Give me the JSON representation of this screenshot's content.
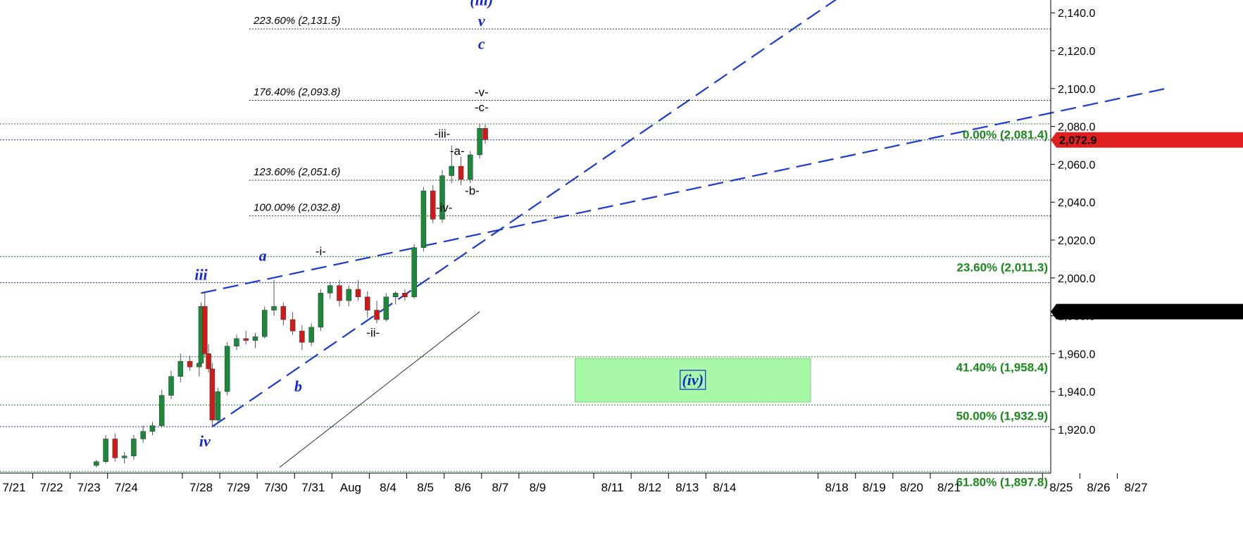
{
  "colors": {
    "up": "#1a8a3a",
    "down": "#d01a1a",
    "wave_blue": "#1428d0",
    "retr_green": "#1a8a1a",
    "last_price_bg": "#e02020",
    "value_badge_bg": "#000000",
    "zone_fill": "#a6f7a6"
  },
  "chart_data": {
    "type": "candlestick",
    "ylim": [
      1900,
      2150
    ],
    "y_ticks": [
      {
        "value": 1920,
        "label": "1,920.0"
      },
      {
        "value": 1940,
        "label": "1,940.0"
      },
      {
        "value": 1960,
        "label": "1,960.0"
      },
      {
        "value": 1980,
        "label": "1,980.0"
      },
      {
        "value": 2000,
        "label": "2,000.0"
      },
      {
        "value": 2020,
        "label": "2,020.0"
      },
      {
        "value": 2040,
        "label": "2,040.0"
      },
      {
        "value": 2060,
        "label": "2,060.0"
      },
      {
        "value": 2080,
        "label": "2,080.0"
      },
      {
        "value": 2100,
        "label": "2,100.0"
      },
      {
        "value": 2120,
        "label": "2,120.0"
      },
      {
        "value": 2140,
        "label": "2,140.0"
      }
    ],
    "x_ticks": [
      "7/21",
      "7/22",
      "7/23",
      "7/24",
      "7/28",
      "7/29",
      "7/30",
      "7/31",
      "Aug",
      "8/4",
      "8/5",
      "8/6",
      "8/7",
      "8/9",
      "8/11",
      "8/12",
      "8/13",
      "8/14",
      "8/18",
      "8/19",
      "8/20",
      "8/21",
      "8/25",
      "8/26",
      "8/27"
    ],
    "x_tick_slots": [
      0,
      1,
      2,
      3,
      5,
      6,
      7,
      8,
      9,
      10,
      11,
      12,
      13,
      14,
      16,
      17,
      18,
      19,
      22,
      23,
      24,
      25,
      28,
      29,
      30
    ],
    "last_price": {
      "value": 2072.9,
      "label": "2,072.9"
    },
    "indicator_value": {
      "value": 1982.2,
      "label": "1,982.2"
    },
    "fib_extensions": [
      {
        "value": 2131.5,
        "label": "223.60% (2,131.5)"
      },
      {
        "value": 2093.8,
        "label": "176.40% (2,093.8)"
      },
      {
        "value": 2051.6,
        "label": "123.60% (2,051.6)"
      },
      {
        "value": 2032.8,
        "label": "100.00% (2,032.8)"
      }
    ],
    "fib_retracements": [
      {
        "value": 2081.4,
        "label": "0.00% (2,081.4)"
      },
      {
        "value": 2011.3,
        "label": "23.60% (2,011.3)"
      },
      {
        "value": 1958.4,
        "label": "41.40% (1,958.4)"
      },
      {
        "value": 1932.9,
        "label": "50.00% (1,932.9)"
      },
      {
        "value": 1897.8,
        "label": "61.80% (1,897.8)"
      }
    ],
    "blue_dotted_levels": [
      2072.9,
      1997.5,
      1921.5
    ],
    "target_zone": {
      "label": "(iv)",
      "y_top": 1957.5,
      "y_bottom": 1934.5,
      "x_start_slot": 15.0,
      "x_end_slot": 21.3
    },
    "wave_labels_blue": [
      {
        "text": "(iii)",
        "x_slot": 12.5,
        "y": 2144
      },
      {
        "text": "v",
        "x_slot": 12.5,
        "y": 2133
      },
      {
        "text": "c",
        "x_slot": 12.5,
        "y": 2121
      },
      {
        "text": "iii",
        "x_slot": 5.0,
        "y": 1999
      },
      {
        "text": "a",
        "x_slot": 6.65,
        "y": 2009
      },
      {
        "text": "b",
        "x_slot": 7.6,
        "y": 1940
      },
      {
        "text": "iv",
        "x_slot": 5.1,
        "y": 1911
      }
    ],
    "wave_labels_black": [
      {
        "text": "-v-",
        "x_slot": 12.5,
        "y": 2096
      },
      {
        "text": "-c-",
        "x_slot": 12.5,
        "y": 2088
      },
      {
        "text": "-iii-",
        "x_slot": 11.45,
        "y": 2074
      },
      {
        "text": "-a-",
        "x_slot": 11.85,
        "y": 2065
      },
      {
        "text": "-b-",
        "x_slot": 12.25,
        "y": 2044
      },
      {
        "text": "-iv-",
        "x_slot": 11.5,
        "y": 2035
      },
      {
        "text": "-i-",
        "x_slot": 8.2,
        "y": 2012
      },
      {
        "text": "-ii-",
        "x_slot": 9.6,
        "y": 1969
      }
    ],
    "trendlines": [
      {
        "style": "dashed",
        "color": "blue",
        "from": [
          5.3,
          1921.5
        ],
        "to": [
          22.2,
          2150
        ]
      },
      {
        "style": "dashed",
        "color": "blue",
        "from": [
          5.0,
          1992
        ],
        "to": [
          30.8,
          2100
        ]
      },
      {
        "style": "solid",
        "color": "black",
        "from": [
          7.1,
          1900
        ],
        "to": [
          12.45,
          1982.2
        ]
      }
    ],
    "candles": [
      [
        2.2,
        1901,
        1904,
        1900,
        1903
      ],
      [
        2.45,
        1903,
        1917,
        1902,
        1915
      ],
      [
        2.7,
        1915,
        1918,
        1903,
        1905
      ],
      [
        2.95,
        1905,
        1908,
        1902,
        1906
      ],
      [
        3.2,
        1906,
        1917,
        1904,
        1915
      ],
      [
        3.45,
        1915,
        1922,
        1913,
        1919
      ],
      [
        3.7,
        1919,
        1924,
        1917,
        1922
      ],
      [
        3.95,
        1922,
        1941,
        1921,
        1938
      ],
      [
        4.2,
        1938,
        1951,
        1936,
        1948
      ],
      [
        4.45,
        1948,
        1960,
        1945,
        1956
      ],
      [
        4.7,
        1956,
        1959,
        1951,
        1953
      ],
      [
        4.95,
        1953,
        1958,
        1948,
        1955
      ],
      [
        5.0,
        1955,
        1987,
        1953,
        1985
      ],
      [
        5.1,
        1985,
        1993,
        1958,
        1960
      ],
      [
        5.2,
        1960,
        1965,
        1950,
        1952
      ],
      [
        5.3,
        1952,
        1955,
        1921,
        1925
      ],
      [
        5.45,
        1925,
        1942,
        1923,
        1940
      ],
      [
        5.7,
        1940,
        1966,
        1938,
        1964
      ],
      [
        5.95,
        1964,
        1970,
        1962,
        1968
      ],
      [
        6.2,
        1968,
        1972,
        1965,
        1967
      ],
      [
        6.45,
        1967,
        1971,
        1963,
        1969
      ],
      [
        6.7,
        1969,
        1985,
        1968,
        1983
      ],
      [
        6.95,
        1983,
        1999,
        1980,
        1985
      ],
      [
        7.2,
        1985,
        1987,
        1975,
        1978
      ],
      [
        7.45,
        1978,
        1982,
        1970,
        1972
      ],
      [
        7.7,
        1972,
        1975,
        1962,
        1966
      ],
      [
        7.95,
        1966,
        1976,
        1964,
        1974
      ],
      [
        8.2,
        1974,
        1994,
        1972,
        1992
      ],
      [
        8.45,
        1992,
        1998,
        1989,
        1996
      ],
      [
        8.7,
        1996,
        1999,
        1985,
        1988
      ],
      [
        8.95,
        1988,
        1996,
        1985,
        1994
      ],
      [
        9.2,
        1994,
        1999,
        1988,
        1990
      ],
      [
        9.45,
        1990,
        1993,
        1979,
        1983
      ],
      [
        9.7,
        1983,
        1988,
        1976,
        1978
      ],
      [
        9.95,
        1978,
        1992,
        1977,
        1990
      ],
      [
        10.2,
        1990,
        1993,
        1986,
        1992
      ],
      [
        10.45,
        1992,
        1994,
        1988,
        1990
      ],
      [
        10.7,
        1990,
        2018,
        1989,
        2016
      ],
      [
        10.95,
        2016,
        2048,
        2014,
        2046
      ],
      [
        11.2,
        2046,
        2049,
        2029,
        2031
      ],
      [
        11.45,
        2031,
        2057,
        2029,
        2054
      ],
      [
        11.7,
        2054,
        2070,
        2050,
        2059
      ],
      [
        11.95,
        2059,
        2064,
        2049,
        2052
      ],
      [
        12.2,
        2052,
        2067,
        2050,
        2065
      ],
      [
        12.45,
        2065,
        2081.4,
        2063,
        2079
      ],
      [
        12.6,
        2079,
        2081,
        2071,
        2073
      ]
    ]
  }
}
